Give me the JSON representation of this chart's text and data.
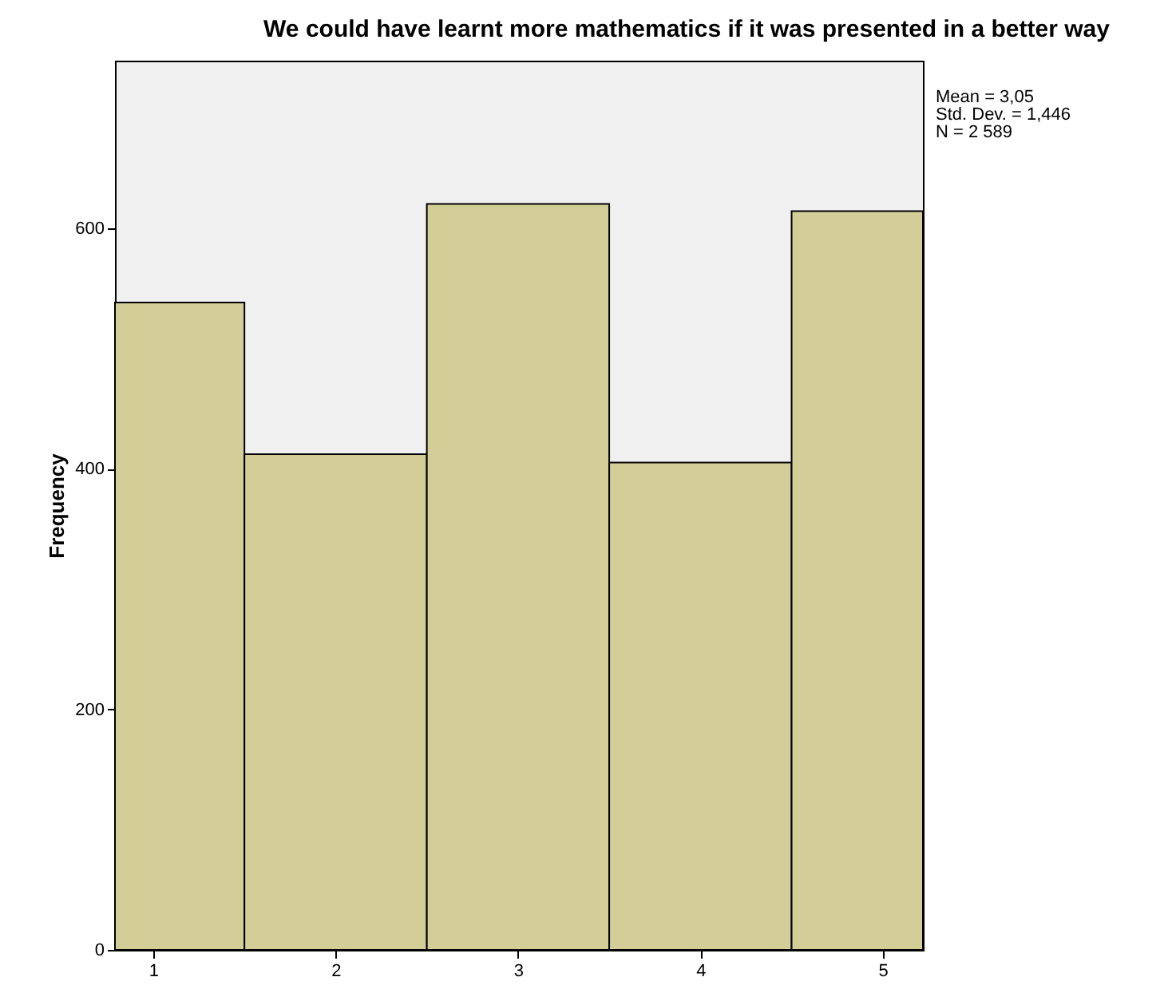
{
  "chart_data": {
    "type": "histogram",
    "title": "We could have learnt more mathematics if it was presented in a better way",
    "ylabel": "Frequency",
    "annotations": [
      "Mean = 3,05",
      "Std. Dev. = 1,446",
      "N = 2 589"
    ],
    "bins": [
      0.79,
      1.5,
      2.5,
      3.5,
      4.5,
      5.22
    ],
    "values": [
      538,
      412,
      620,
      405,
      614
    ],
    "color": "#d3ce97",
    "xlim": [
      0.79,
      5.22
    ],
    "xticks": [
      1,
      2,
      3,
      4,
      5
    ],
    "ylim": [
      0,
      739
    ],
    "yticks": [
      0,
      200,
      400,
      600
    ],
    "grid": false
  }
}
